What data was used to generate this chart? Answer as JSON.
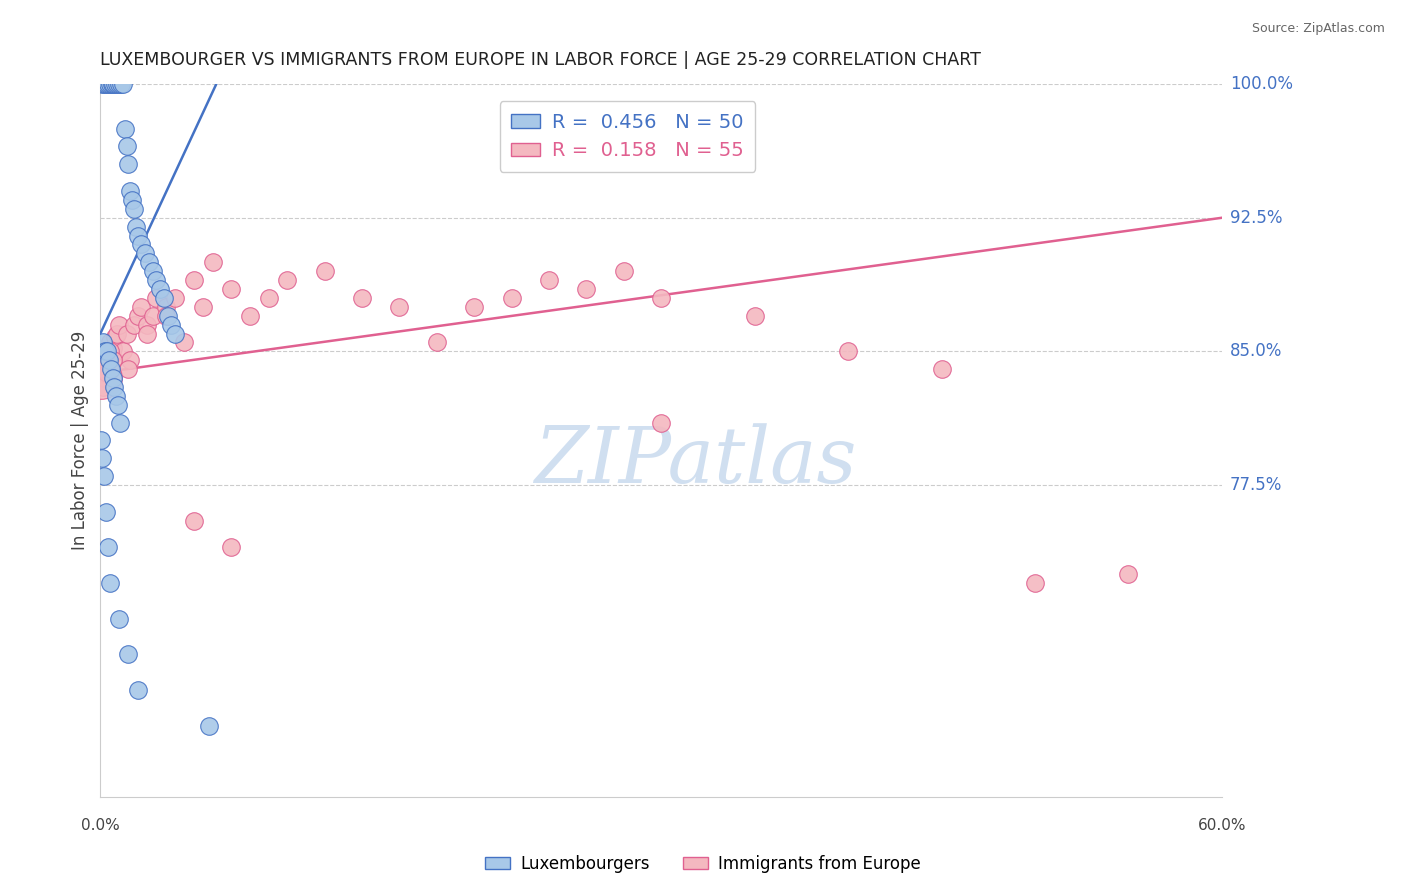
{
  "title": "LUXEMBOURGER VS IMMIGRANTS FROM EUROPE IN LABOR FORCE | AGE 25-29 CORRELATION CHART",
  "source": "Source: ZipAtlas.com",
  "ylabel": "In Labor Force | Age 25-29",
  "xlim": [
    0.0,
    60.0
  ],
  "ylim": [
    60.0,
    100.0
  ],
  "ytick_vals": [
    77.5,
    85.0,
    92.5,
    100.0
  ],
  "blue_R": 0.456,
  "blue_N": 50,
  "pink_R": 0.158,
  "pink_N": 55,
  "legend_label_blue": "Luxembourgers",
  "legend_label_pink": "Immigrants from Europe",
  "blue_fill": "#a8c8e8",
  "pink_fill": "#f4b8c0",
  "blue_edge": "#4472c4",
  "pink_edge": "#e06090",
  "blue_line": "#4472c4",
  "pink_line": "#e06090",
  "grid_color": "#cccccc",
  "watermark_color": "#d0dff0",
  "blue_line_x": [
    0.0,
    6.2
  ],
  "blue_line_y": [
    86.0,
    100.0
  ],
  "pink_line_x": [
    0.0,
    60.0
  ],
  "pink_line_y": [
    83.8,
    92.5
  ],
  "blue_x": [
    0.1,
    0.2,
    0.3,
    0.4,
    0.5,
    0.6,
    0.7,
    0.8,
    0.9,
    1.0,
    1.1,
    1.2,
    1.3,
    1.4,
    1.5,
    1.6,
    1.7,
    1.8,
    1.9,
    2.0,
    2.2,
    2.4,
    2.6,
    2.8,
    3.0,
    3.2,
    3.4,
    3.6,
    3.8,
    4.0,
    0.15,
    0.25,
    0.35,
    0.45,
    0.55,
    0.65,
    0.75,
    0.85,
    0.95,
    1.05,
    0.05,
    0.1,
    0.2,
    0.3,
    0.4,
    0.5,
    1.0,
    1.5,
    2.0,
    5.8
  ],
  "blue_y": [
    100.0,
    100.0,
    100.0,
    100.0,
    100.0,
    100.0,
    100.0,
    100.0,
    100.0,
    100.0,
    100.0,
    100.0,
    97.5,
    96.5,
    95.5,
    94.0,
    93.5,
    93.0,
    92.0,
    91.5,
    91.0,
    90.5,
    90.0,
    89.5,
    89.0,
    88.5,
    88.0,
    87.0,
    86.5,
    86.0,
    85.5,
    85.0,
    85.0,
    84.5,
    84.0,
    83.5,
    83.0,
    82.5,
    82.0,
    81.0,
    80.0,
    79.0,
    78.0,
    76.0,
    74.0,
    72.0,
    70.0,
    68.0,
    66.0,
    64.0
  ],
  "pink_x": [
    0.1,
    0.2,
    0.3,
    0.4,
    0.5,
    0.6,
    0.7,
    0.8,
    0.9,
    1.0,
    1.2,
    1.4,
    1.6,
    1.8,
    2.0,
    2.2,
    2.5,
    2.8,
    3.0,
    3.5,
    4.0,
    4.5,
    5.0,
    5.5,
    6.0,
    7.0,
    8.0,
    9.0,
    10.0,
    12.0,
    14.0,
    16.0,
    18.0,
    20.0,
    22.0,
    24.0,
    26.0,
    28.0,
    30.0,
    35.0,
    40.0,
    45.0,
    50.0,
    55.0,
    0.15,
    0.25,
    0.35,
    0.5,
    0.7,
    1.5,
    2.5,
    3.5,
    5.0,
    7.0,
    30.0
  ],
  "pink_y": [
    84.0,
    83.5,
    84.5,
    85.0,
    85.5,
    84.8,
    85.2,
    85.8,
    86.0,
    86.5,
    85.0,
    86.0,
    84.5,
    86.5,
    87.0,
    87.5,
    86.5,
    87.0,
    88.0,
    87.5,
    88.0,
    85.5,
    89.0,
    87.5,
    90.0,
    88.5,
    87.0,
    88.0,
    89.0,
    89.5,
    88.0,
    87.5,
    85.5,
    87.5,
    88.0,
    89.0,
    88.5,
    89.5,
    88.0,
    87.0,
    85.0,
    84.0,
    72.0,
    72.5,
    83.0,
    84.2,
    83.8,
    85.0,
    84.5,
    84.0,
    86.0,
    87.0,
    75.5,
    74.0,
    81.0
  ],
  "pink_large_x": [
    0.05
  ],
  "pink_large_y": [
    83.5
  ],
  "pink_large_size": 900
}
